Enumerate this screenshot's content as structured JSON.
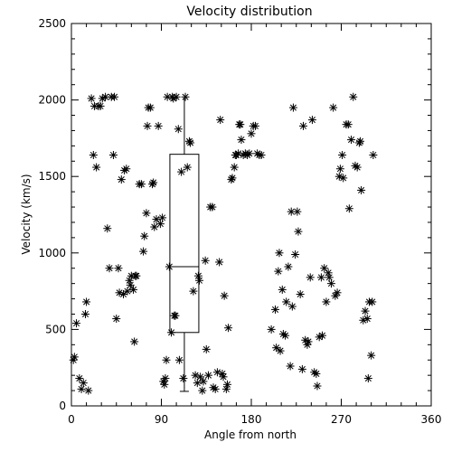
{
  "chart_data": {
    "type": "scatter",
    "title": "Velocity distribution",
    "xlabel": "Angle from north",
    "ylabel": "Velocity (km/s)",
    "xlim": [
      0,
      360
    ],
    "ylim": [
      0,
      2500
    ],
    "xticks": [
      0,
      90,
      180,
      270,
      360
    ],
    "yticks": [
      0,
      500,
      1000,
      1500,
      2000,
      2500
    ],
    "marker": "asterisk",
    "grid": false,
    "boxplot": {
      "x": 113,
      "q1": 480,
      "median": 910,
      "q3": 1645,
      "whisker_low": 95,
      "whisker_high": 2010
    },
    "points": [
      [
        2,
        300
      ],
      [
        3,
        320
      ],
      [
        5,
        540
      ],
      [
        8,
        180
      ],
      [
        10,
        110
      ],
      [
        12,
        150
      ],
      [
        14,
        600
      ],
      [
        15,
        680
      ],
      [
        17,
        100
      ],
      [
        20,
        2010
      ],
      [
        22,
        1640
      ],
      [
        23,
        1960
      ],
      [
        25,
        1560
      ],
      [
        27,
        1960
      ],
      [
        29,
        1960
      ],
      [
        31,
        2010
      ],
      [
        34,
        2020
      ],
      [
        36,
        1160
      ],
      [
        38,
        900
      ],
      [
        40,
        2020
      ],
      [
        42,
        1640
      ],
      [
        43,
        2020
      ],
      [
        45,
        570
      ],
      [
        47,
        900
      ],
      [
        48,
        740
      ],
      [
        50,
        1480
      ],
      [
        52,
        730
      ],
      [
        53,
        1540
      ],
      [
        55,
        1550
      ],
      [
        56,
        750
      ],
      [
        58,
        820
      ],
      [
        59,
        790
      ],
      [
        60,
        850
      ],
      [
        62,
        760
      ],
      [
        63,
        420
      ],
      [
        64,
        850
      ],
      [
        65,
        850
      ],
      [
        68,
        1450
      ],
      [
        70,
        1450
      ],
      [
        72,
        1010
      ],
      [
        73,
        1110
      ],
      [
        75,
        1260
      ],
      [
        76,
        1830
      ],
      [
        77,
        1950
      ],
      [
        79,
        1950
      ],
      [
        81,
        1450
      ],
      [
        82,
        1460
      ],
      [
        83,
        1170
      ],
      [
        85,
        1220
      ],
      [
        87,
        1830
      ],
      [
        89,
        1190
      ],
      [
        91,
        1230
      ],
      [
        92,
        160
      ],
      [
        93,
        140
      ],
      [
        94,
        180
      ],
      [
        95,
        300
      ],
      [
        96,
        2020
      ],
      [
        98,
        910
      ],
      [
        100,
        480
      ],
      [
        101,
        2020
      ],
      [
        102,
        2010
      ],
      [
        103,
        590
      ],
      [
        104,
        590
      ],
      [
        105,
        2020
      ],
      [
        107,
        1810
      ],
      [
        108,
        300
      ],
      [
        110,
        1530
      ],
      [
        112,
        180
      ],
      [
        114,
        2020
      ],
      [
        116,
        1560
      ],
      [
        118,
        1730
      ],
      [
        119,
        1720
      ],
      [
        122,
        750
      ],
      [
        124,
        200
      ],
      [
        126,
        150
      ],
      [
        127,
        850
      ],
      [
        128,
        820
      ],
      [
        129,
        190
      ],
      [
        131,
        100
      ],
      [
        132,
        160
      ],
      [
        134,
        950
      ],
      [
        135,
        370
      ],
      [
        137,
        200
      ],
      [
        139,
        1300
      ],
      [
        141,
        1300
      ],
      [
        142,
        120
      ],
      [
        144,
        110
      ],
      [
        146,
        220
      ],
      [
        148,
        940
      ],
      [
        149,
        1870
      ],
      [
        151,
        210
      ],
      [
        152,
        190
      ],
      [
        153,
        720
      ],
      [
        155,
        110
      ],
      [
        156,
        140
      ],
      [
        157,
        510
      ],
      [
        160,
        1480
      ],
      [
        161,
        1490
      ],
      [
        163,
        1560
      ],
      [
        164,
        1640
      ],
      [
        165,
        1640
      ],
      [
        167,
        1650
      ],
      [
        168,
        1840
      ],
      [
        169,
        1840
      ],
      [
        170,
        1740
      ],
      [
        172,
        1640
      ],
      [
        174,
        1650
      ],
      [
        176,
        1640
      ],
      [
        178,
        1650
      ],
      [
        180,
        1780
      ],
      [
        182,
        1830
      ],
      [
        184,
        1830
      ],
      [
        186,
        1650
      ],
      [
        188,
        1640
      ],
      [
        190,
        1640
      ],
      [
        200,
        500
      ],
      [
        204,
        630
      ],
      [
        205,
        380
      ],
      [
        207,
        880
      ],
      [
        208,
        1000
      ],
      [
        209,
        360
      ],
      [
        211,
        760
      ],
      [
        212,
        470
      ],
      [
        214,
        460
      ],
      [
        215,
        680
      ],
      [
        217,
        910
      ],
      [
        219,
        260
      ],
      [
        220,
        1270
      ],
      [
        221,
        650
      ],
      [
        222,
        1950
      ],
      [
        224,
        990
      ],
      [
        226,
        1270
      ],
      [
        227,
        1140
      ],
      [
        229,
        730
      ],
      [
        231,
        240
      ],
      [
        232,
        1830
      ],
      [
        234,
        430
      ],
      [
        236,
        400
      ],
      [
        237,
        420
      ],
      [
        239,
        840
      ],
      [
        241,
        1870
      ],
      [
        243,
        220
      ],
      [
        245,
        210
      ],
      [
        246,
        130
      ],
      [
        248,
        450
      ],
      [
        250,
        840
      ],
      [
        251,
        460
      ],
      [
        253,
        900
      ],
      [
        255,
        680
      ],
      [
        257,
        870
      ],
      [
        258,
        840
      ],
      [
        260,
        800
      ],
      [
        262,
        1950
      ],
      [
        264,
        720
      ],
      [
        266,
        740
      ],
      [
        268,
        1500
      ],
      [
        269,
        1550
      ],
      [
        271,
        1640
      ],
      [
        272,
        1490
      ],
      [
        275,
        1840
      ],
      [
        277,
        1840
      ],
      [
        278,
        1290
      ],
      [
        280,
        1740
      ],
      [
        282,
        2020
      ],
      [
        284,
        1570
      ],
      [
        286,
        1560
      ],
      [
        288,
        1720
      ],
      [
        289,
        1730
      ],
      [
        290,
        1410
      ],
      [
        292,
        560
      ],
      [
        294,
        620
      ],
      [
        296,
        570
      ],
      [
        297,
        180
      ],
      [
        298,
        680
      ],
      [
        300,
        330
      ],
      [
        301,
        680
      ],
      [
        302,
        1640
      ]
    ]
  }
}
